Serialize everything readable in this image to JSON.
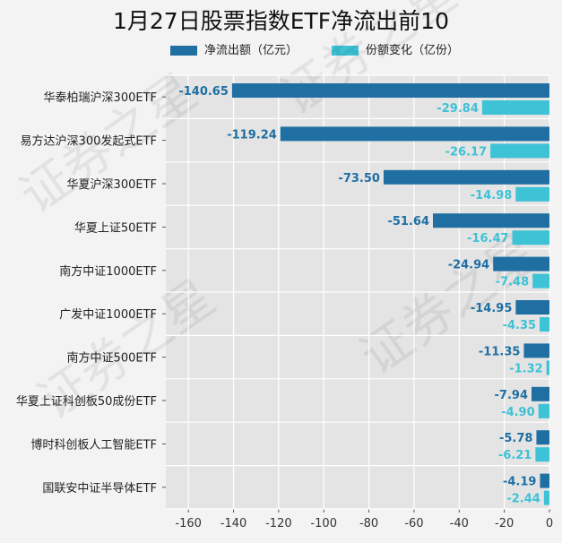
{
  "chart_data": {
    "type": "bar",
    "orientation": "horizontal",
    "title": "1月27日股票指数ETF净流出前10",
    "categories": [
      "华泰柏瑞沪深300ETF",
      "易方达沪深300发起式ETF",
      "华夏沪深300ETF",
      "华夏上证50ETF",
      "南方中证1000ETF",
      "广发中证1000ETF",
      "南方中证500ETF",
      "华夏上证科创板50成份ETF",
      "博时科创板人工智能ETF",
      "国联安中证半导体ETF"
    ],
    "series": [
      {
        "name": "净流出额（亿元）",
        "color": "#1f6fa3",
        "label_color": "#1f6fa3",
        "values": [
          -140.65,
          -119.24,
          -73.5,
          -51.64,
          -24.94,
          -14.95,
          -11.35,
          -7.94,
          -5.78,
          -4.19
        ],
        "labels": [
          "-140.65",
          "-119.24",
          "-73.50",
          "-51.64",
          "-24.94",
          "-14.95",
          "-11.35",
          "-7.94",
          "-5.78",
          "-4.19"
        ]
      },
      {
        "name": "份额变化（亿份）",
        "color": "#3dc2d6",
        "label_color": "#3dc2d6",
        "values": [
          -29.84,
          -26.17,
          -14.98,
          -16.47,
          -7.48,
          -4.35,
          -1.32,
          -4.9,
          -6.21,
          -2.44
        ],
        "labels": [
          "-29.84",
          "-26.17",
          "-14.98",
          "-16.47",
          "-7.48",
          "-4.35",
          "-1.32",
          "-4.90",
          "-6.21",
          "-2.44"
        ]
      }
    ],
    "xlim": [
      -170,
      0
    ],
    "xticks": [
      -160,
      -140,
      -120,
      -100,
      -80,
      -60,
      -40,
      -20,
      0
    ],
    "grid": true,
    "legend_position": "top",
    "watermark": "证券之星"
  }
}
